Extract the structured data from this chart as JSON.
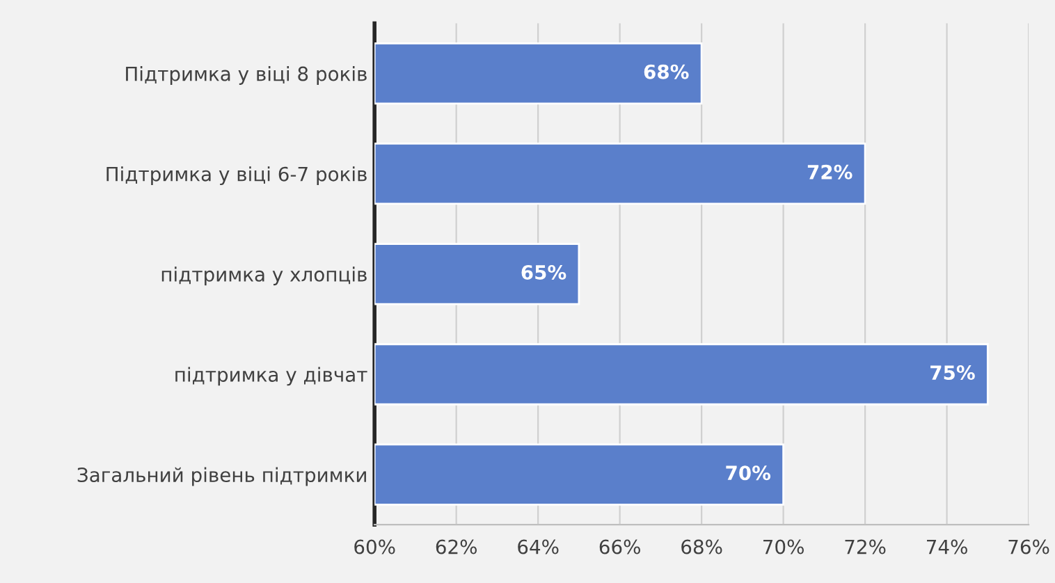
{
  "chart_data": {
    "type": "bar",
    "orientation": "horizontal",
    "categories": [
      "Підтримка у віці 8 років",
      "Підтримка у віці 6-7 років",
      "підтримка у хлопців",
      "підтримка у дівчат",
      "Загальний рівень підтримки"
    ],
    "values": [
      68,
      72,
      65,
      75,
      70
    ],
    "value_labels": [
      "68%",
      "72%",
      "65%",
      "75%",
      "70%"
    ],
    "color": "#5a7fcb",
    "xlim": [
      60,
      76
    ],
    "xticks": [
      {
        "value": 60,
        "label": "60%"
      },
      {
        "value": 62,
        "label": "62%"
      },
      {
        "value": 64,
        "label": "64%"
      },
      {
        "value": 66,
        "label": "66%"
      },
      {
        "value": 68,
        "label": "68%"
      },
      {
        "value": 70,
        "label": "70%"
      },
      {
        "value": 72,
        "label": "72%"
      },
      {
        "value": 74,
        "label": "74%"
      },
      {
        "value": 76,
        "label": "76%"
      }
    ],
    "grid": "x"
  }
}
